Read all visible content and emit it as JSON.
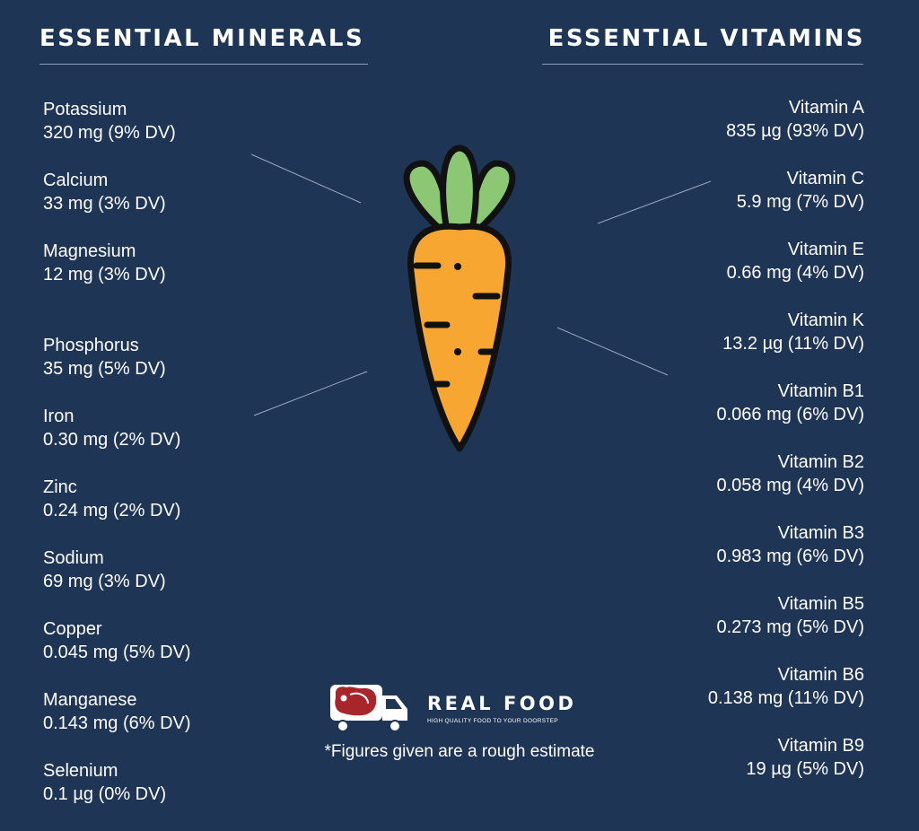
{
  "headings": {
    "minerals": "ESSENTIAL MINERALS",
    "vitamins": "ESSENTIAL VITAMINS"
  },
  "minerals": [
    {
      "name": "Potassium",
      "amount": "320 mg (9% DV)"
    },
    {
      "name": "Calcium",
      "amount": "33 mg (3% DV)"
    },
    {
      "name": "Magnesium",
      "amount": "12 mg (3% DV)"
    },
    {
      "name": "Phosphorus",
      "amount": "35 mg (5% DV)"
    },
    {
      "name": "Iron",
      "amount": "0.30 mg (2% DV)"
    },
    {
      "name": "Zinc",
      "amount": "0.24 mg (2% DV)"
    },
    {
      "name": "Sodium",
      "amount": "69 mg (3% DV)"
    },
    {
      "name": "Copper",
      "amount": "0.045 mg (5% DV)"
    },
    {
      "name": "Manganese",
      "amount": "0.143 mg (6% DV)"
    },
    {
      "name": "Selenium",
      "amount": "0.1 µg (0% DV)"
    }
  ],
  "vitamins": [
    {
      "name": "Vitamin A",
      "amount": "835 µg (93% DV)"
    },
    {
      "name": "Vitamin C",
      "amount": "5.9 mg (7% DV)"
    },
    {
      "name": "Vitamin E",
      "amount": "0.66 mg (4% DV)"
    },
    {
      "name": "Vitamin K",
      "amount": "13.2 µg (11% DV)"
    },
    {
      "name": "Vitamin B1",
      "amount": "0.066 mg (6% DV)"
    },
    {
      "name": "Vitamin B2",
      "amount": "0.058 mg (4% DV)"
    },
    {
      "name": "Vitamin B3",
      "amount": "0.983 mg (6% DV)"
    },
    {
      "name": "Vitamin B5",
      "amount": "0.273 mg (5% DV)"
    },
    {
      "name": "Vitamin B6",
      "amount": "0.138 mg (11% DV)"
    },
    {
      "name": "Vitamin B9",
      "amount": "19 µg (5% DV)"
    }
  ],
  "brand": {
    "name": "REAL FOOD",
    "tagline": "HIGH QUALITY FOOD TO YOUR DOORSTEP"
  },
  "footnote": "*Figures given are a rough estimate",
  "icons": {
    "illustration": "carrot-icon",
    "logo": "delivery-truck-icon"
  },
  "colors": {
    "background": "#1f3556",
    "text": "#ffffff",
    "carrot_body": "#f7a632",
    "carrot_leaves": "#8cc874",
    "outline": "#111111",
    "logo_meat": "#a8262b"
  }
}
